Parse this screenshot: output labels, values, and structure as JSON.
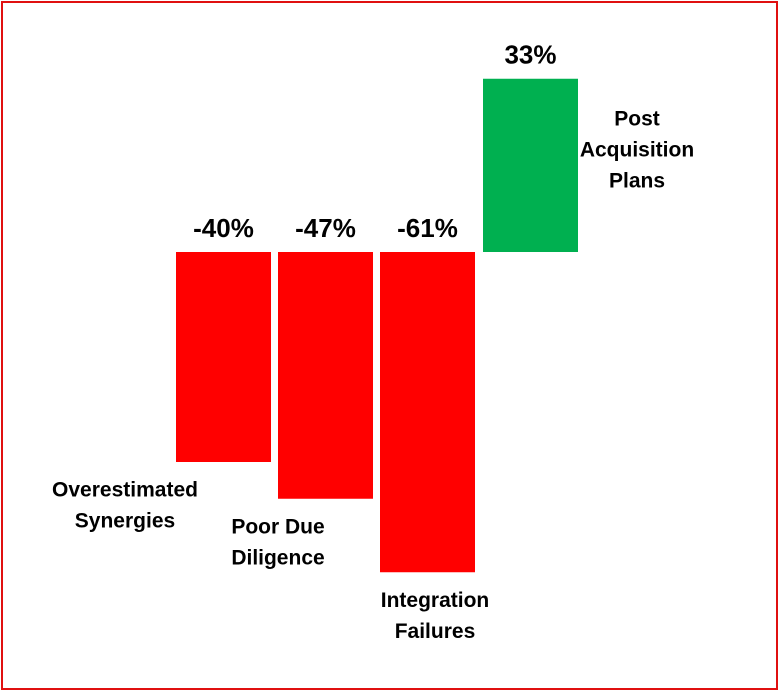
{
  "chart_data": {
    "type": "bar",
    "categories": [
      [
        "Overestimated",
        "Synergies"
      ],
      [
        "Poor Due",
        "Diligence"
      ],
      [
        "Integration",
        "Failures"
      ],
      [
        "Post",
        "Acquisition",
        "Plans"
      ]
    ],
    "values": [
      -40,
      -47,
      -61,
      33
    ],
    "value_labels": [
      "-40%",
      "-47%",
      "-61%",
      "33%"
    ],
    "colors": [
      "#ff0000",
      "#ff0000",
      "#ff0000",
      "#00b050"
    ],
    "ylim": [
      -65,
      35
    ]
  }
}
